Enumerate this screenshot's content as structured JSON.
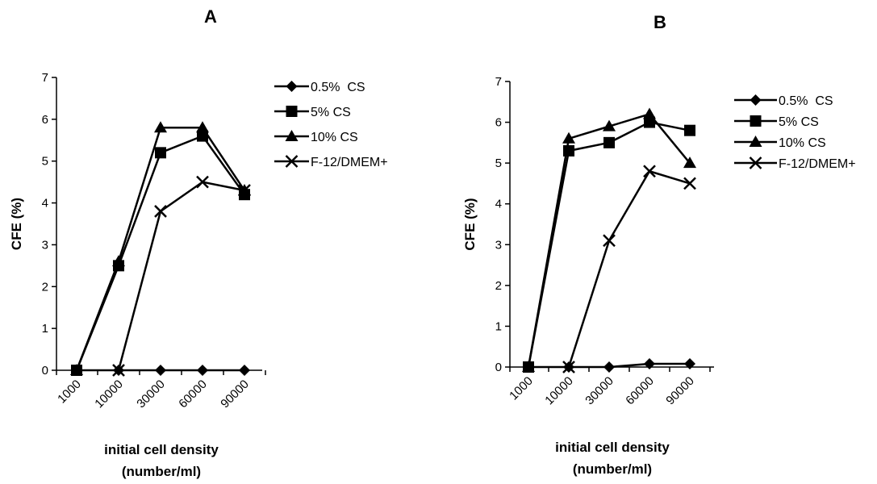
{
  "chart_data": [
    {
      "type": "line",
      "title": "A",
      "xlabel": [
        "initial cell density",
        "(number/ml)"
      ],
      "ylabel": "CFE (%)",
      "ylim": [
        0,
        7
      ],
      "yticks": [
        "0",
        "1",
        "2",
        "3",
        "4",
        "5",
        "6",
        "7"
      ],
      "categories": [
        "1000",
        "10000",
        "30000",
        "60000",
        "90000"
      ],
      "legend_position": "right",
      "series": [
        {
          "name": "0.5%  CS",
          "marker": "diamond",
          "values": [
            0,
            0,
            0,
            0,
            0
          ]
        },
        {
          "name": "5% CS",
          "marker": "square",
          "values": [
            0,
            2.5,
            5.2,
            5.6,
            4.2
          ]
        },
        {
          "name": "10% CS",
          "marker": "triangle",
          "values": [
            0,
            2.6,
            5.8,
            5.8,
            4.3
          ]
        },
        {
          "name": "F-12/DMEM+",
          "marker": "x",
          "values": [
            null,
            0,
            3.8,
            4.5,
            4.3
          ]
        }
      ]
    },
    {
      "type": "line",
      "title": "B",
      "xlabel": [
        "initial cell density",
        "(number/ml)"
      ],
      "ylabel": "CFE (%)",
      "ylim": [
        0,
        7
      ],
      "yticks": [
        "0",
        "1",
        "2",
        "3",
        "4",
        "5",
        "6",
        "7"
      ],
      "categories": [
        "1000",
        "10000",
        "30000",
        "60000",
        "90000"
      ],
      "legend_position": "right",
      "series": [
        {
          "name": "0.5%  CS",
          "marker": "diamond",
          "values": [
            0,
            0,
            0,
            0.08,
            0.08
          ]
        },
        {
          "name": "5% CS",
          "marker": "square",
          "values": [
            0,
            5.3,
            5.5,
            6.0,
            5.8
          ]
        },
        {
          "name": "10% CS",
          "marker": "triangle",
          "values": [
            0,
            5.6,
            5.9,
            6.2,
            5.0
          ]
        },
        {
          "name": "F-12/DMEM+",
          "marker": "x",
          "values": [
            null,
            0,
            3.1,
            4.8,
            4.5
          ]
        }
      ]
    }
  ],
  "colors": {
    "series": "#000000",
    "background": "#ffffff"
  }
}
